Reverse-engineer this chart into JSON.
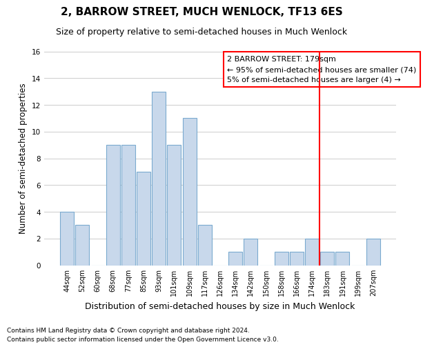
{
  "title": "2, BARROW STREET, MUCH WENLOCK, TF13 6ES",
  "subtitle": "Size of property relative to semi-detached houses in Much Wenlock",
  "xlabel_bottom": "Distribution of semi-detached houses by size in Much Wenlock",
  "ylabel": "Number of semi-detached properties",
  "categories": [
    "44sqm",
    "52sqm",
    "60sqm",
    "68sqm",
    "77sqm",
    "85sqm",
    "93sqm",
    "101sqm",
    "109sqm",
    "117sqm",
    "126sqm",
    "134sqm",
    "142sqm",
    "150sqm",
    "158sqm",
    "166sqm",
    "174sqm",
    "183sqm",
    "191sqm",
    "199sqm",
    "207sqm"
  ],
  "values": [
    4,
    3,
    0,
    9,
    9,
    7,
    13,
    9,
    11,
    3,
    0,
    1,
    2,
    0,
    1,
    1,
    2,
    1,
    1,
    0,
    2
  ],
  "bar_color": "#c8d8eb",
  "bar_edge_color": "#7aaacf",
  "grid_color": "#cccccc",
  "vline_x": 16.5,
  "vline_color": "red",
  "annotation_title": "2 BARROW STREET: 179sqm",
  "annotation_line1": "← 95% of semi-detached houses are smaller (74)",
  "annotation_line2": "5% of semi-detached houses are larger (4) →",
  "ylim": [
    0,
    16
  ],
  "yticks": [
    0,
    2,
    4,
    6,
    8,
    10,
    12,
    14,
    16
  ],
  "footnote1": "Contains HM Land Registry data © Crown copyright and database right 2024.",
  "footnote2": "Contains public sector information licensed under the Open Government Licence v3.0.",
  "title_fontsize": 11,
  "subtitle_fontsize": 9,
  "tick_fontsize": 7,
  "ylabel_fontsize": 8.5,
  "xlabel_bottom_fontsize": 9,
  "annotation_fontsize": 8,
  "footnote_fontsize": 6.5
}
